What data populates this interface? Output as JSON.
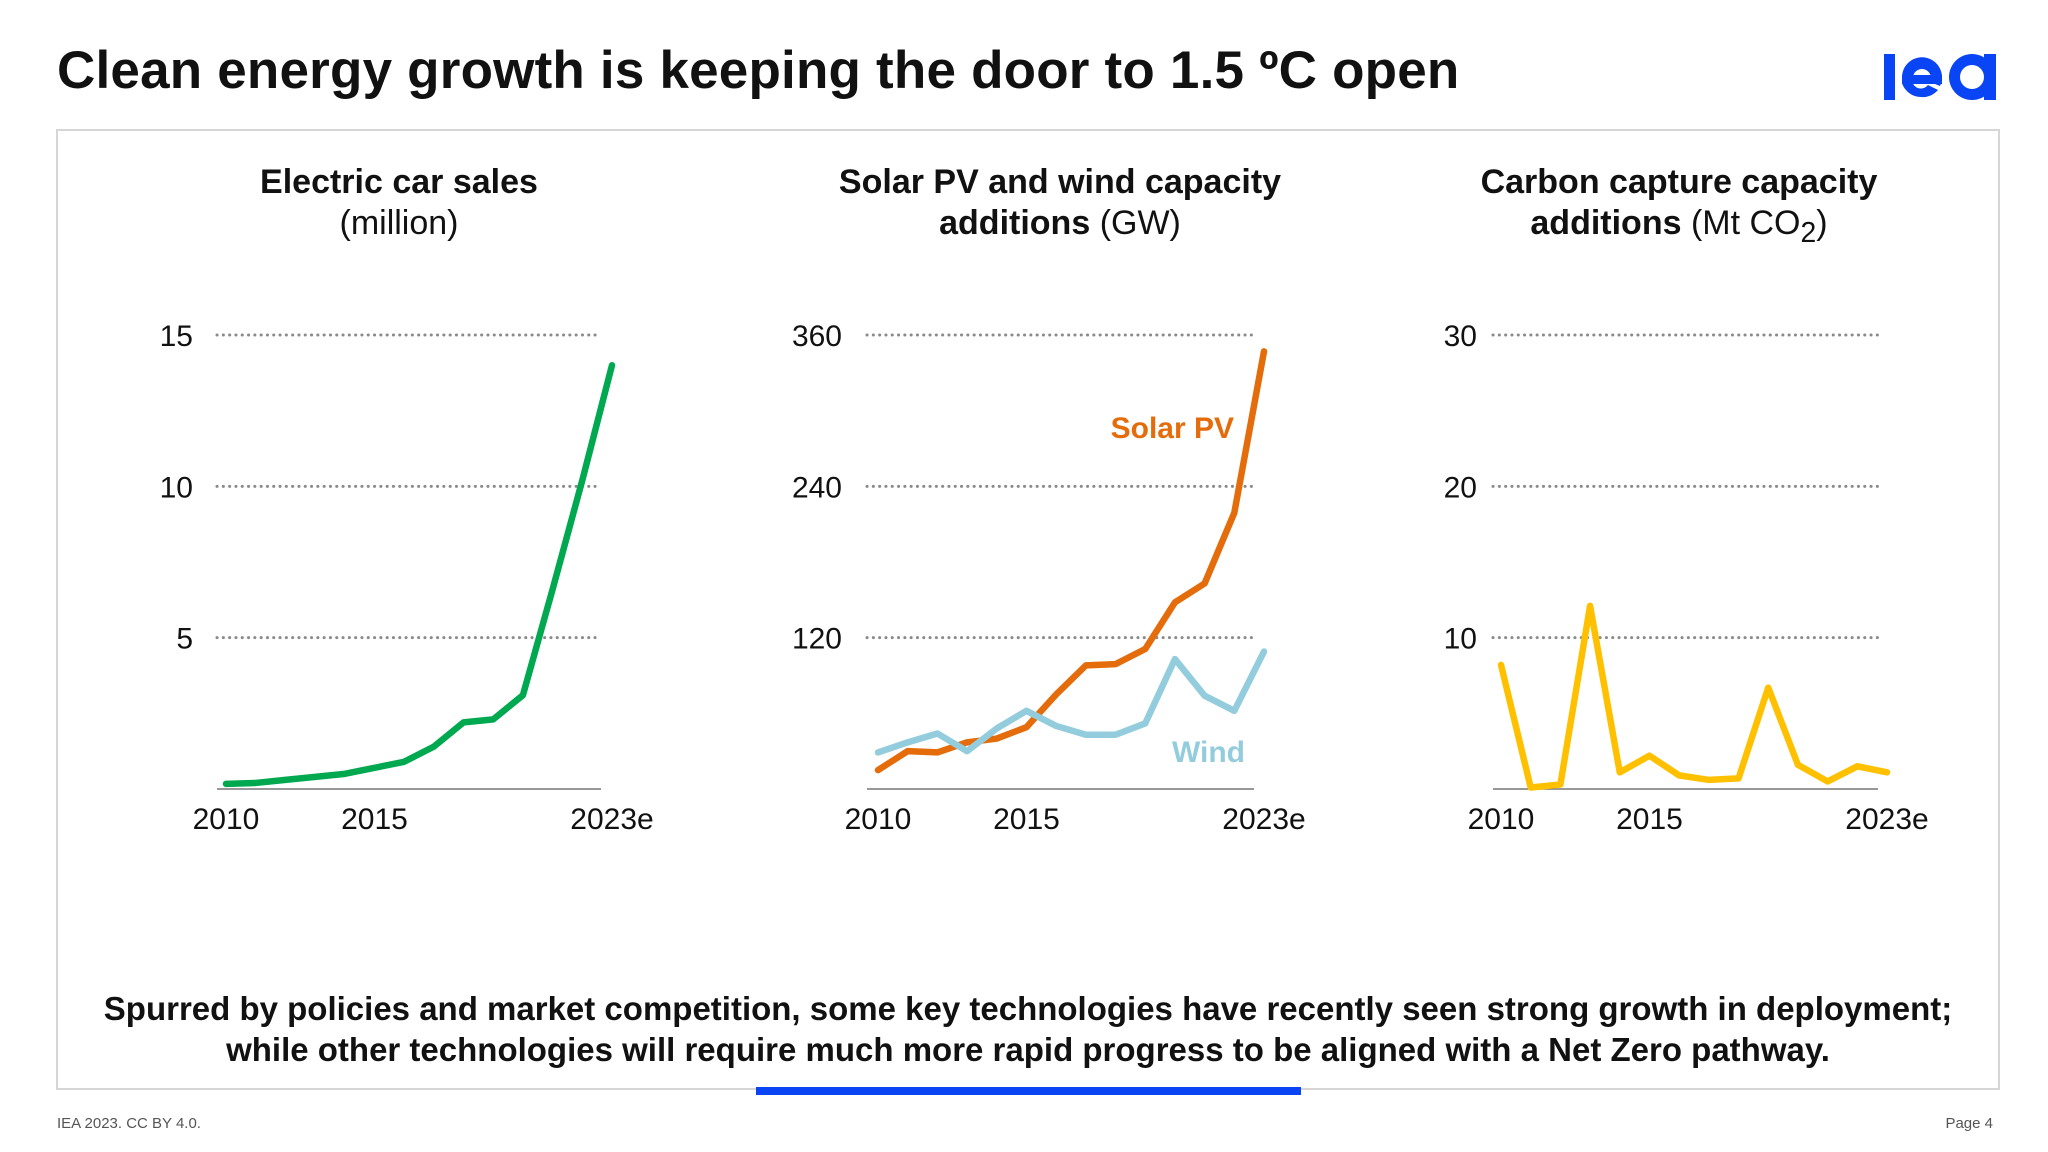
{
  "title": "Clean energy growth is keeping the door to 1.5 ºC open",
  "logo": {
    "text": "iea",
    "color": "#0a45f5"
  },
  "summary": {
    "line1": "Spurred by policies and market competition, some key technologies have recently seen strong growth in deployment;",
    "line2": "while other technologies will require much more rapid progress to be aligned with a Net Zero pathway."
  },
  "footer": {
    "left": "IEA 2023. CC BY 4.0.",
    "right": "Page 4"
  },
  "chart_data": [
    {
      "type": "line",
      "title_bold": "Electric car sales",
      "title_unit": "(million)",
      "x": [
        2010,
        2011,
        2012,
        2013,
        2014,
        2015,
        2016,
        2017,
        2018,
        2019,
        2020,
        2021,
        2022,
        2023
      ],
      "xtick_labels": [
        "2010",
        "2015",
        "2023e"
      ],
      "yticks": [
        "5",
        "10",
        "15"
      ],
      "ylim": [
        0,
        15
      ],
      "grid": true,
      "series": [
        {
          "color": "#00a94f",
          "values": [
            0.17,
            0.2,
            0.3,
            0.4,
            0.5,
            0.7,
            0.9,
            1.4,
            2.2,
            2.3,
            3.1,
            6.6,
            10.2,
            14.0
          ]
        }
      ]
    },
    {
      "type": "line",
      "title_bold": "Solar PV and wind capacity",
      "title_bold2": "additions",
      "title_unit": "(GW)",
      "x": [
        2010,
        2011,
        2012,
        2013,
        2014,
        2015,
        2016,
        2017,
        2018,
        2019,
        2020,
        2021,
        2022,
        2023
      ],
      "xtick_labels": [
        "2010",
        "2015",
        "2023e"
      ],
      "yticks": [
        "120",
        "240",
        "360"
      ],
      "ylim": [
        0,
        360
      ],
      "grid": true,
      "series": [
        {
          "name": "Solar PV",
          "color": "#e46c0a",
          "values": [
            15,
            30,
            29,
            37,
            40,
            49,
            75,
            98,
            99,
            111,
            148,
            163,
            219,
            347
          ]
        },
        {
          "name": "Wind",
          "color": "#93cddd",
          "values": [
            29,
            37,
            44,
            30,
            48,
            62,
            50,
            43,
            43,
            52,
            103,
            74,
            62,
            109
          ]
        }
      ]
    },
    {
      "type": "line",
      "title_bold": "Carbon capture capacity",
      "title_bold2": "additions",
      "title_unit": "(Mt CO",
      "title_sub": "2",
      "title_close": ")",
      "x": [
        2010,
        2011,
        2012,
        2013,
        2014,
        2015,
        2016,
        2017,
        2018,
        2019,
        2020,
        2021,
        2022,
        2023
      ],
      "xtick_labels": [
        "2010",
        "2015",
        "2023e"
      ],
      "yticks": [
        "10",
        "20",
        "30"
      ],
      "ylim": [
        0,
        30
      ],
      "grid": true,
      "series": [
        {
          "color": "#ffc000",
          "values": [
            8.2,
            0.1,
            0.3,
            12.1,
            1.1,
            2.2,
            0.9,
            0.6,
            0.7,
            6.7,
            1.6,
            0.5,
            1.5,
            1.1
          ]
        }
      ]
    }
  ]
}
